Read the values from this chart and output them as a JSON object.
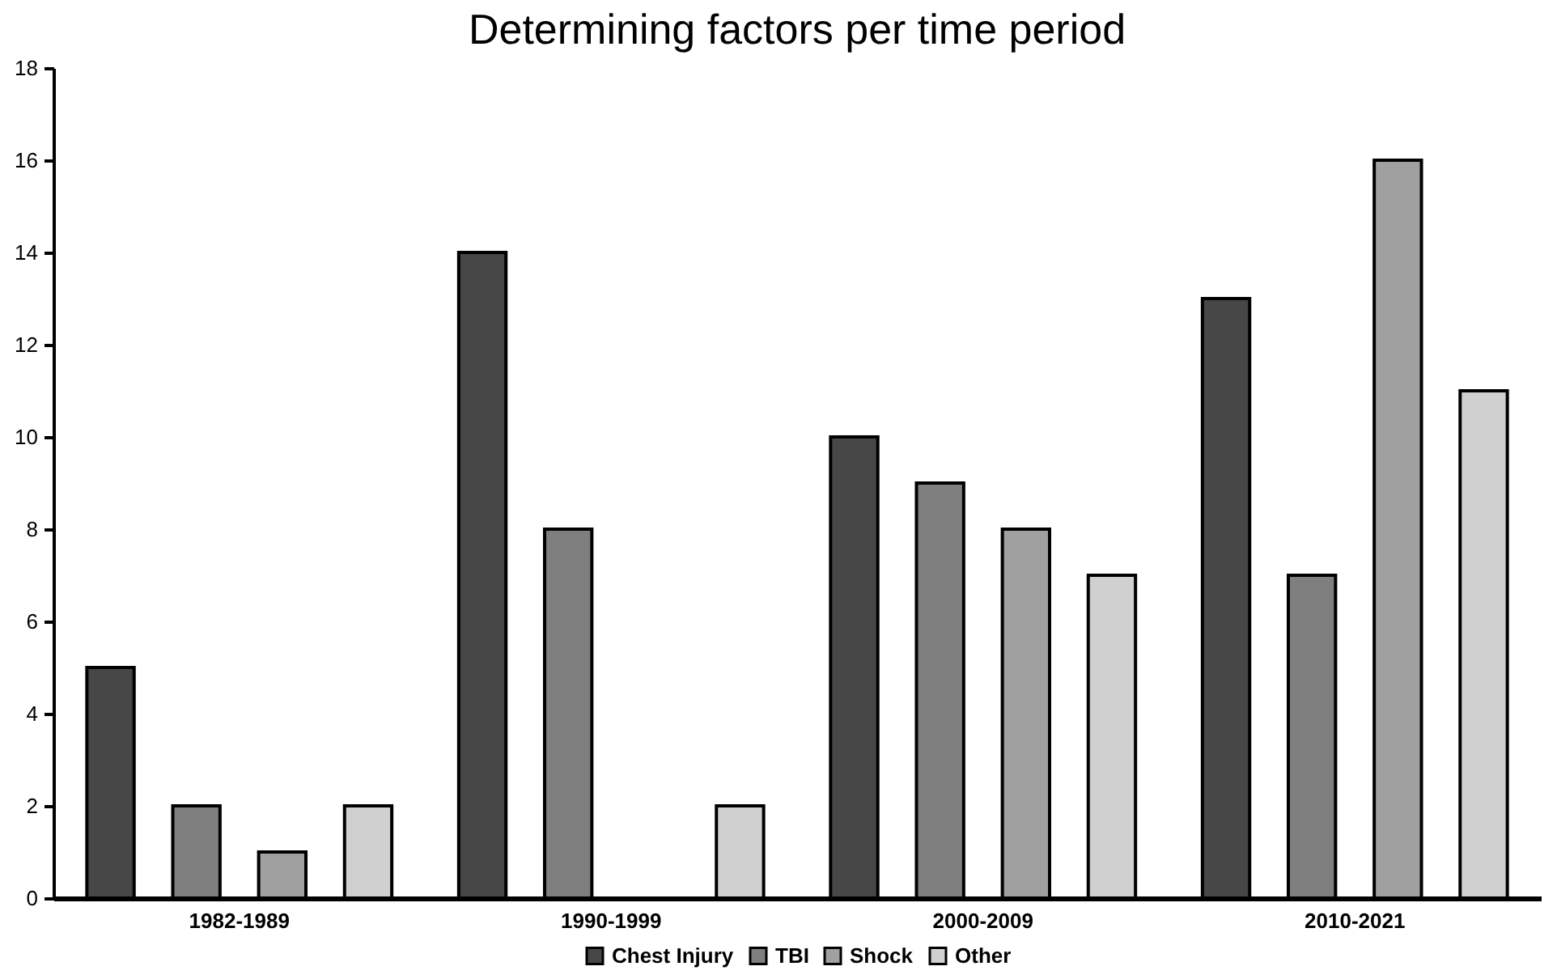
{
  "chart_data": {
    "type": "bar",
    "title": "Determining factors per time period",
    "categories": [
      "1982-1989",
      "1990-1999",
      "2000-2009",
      "2010-2021"
    ],
    "series": [
      {
        "name": "Chest Injury",
        "color": "#474747",
        "values": [
          5,
          14,
          10,
          13
        ]
      },
      {
        "name": "TBI",
        "color": "#7f7f7f",
        "values": [
          2,
          8,
          9,
          7
        ]
      },
      {
        "name": "Shock",
        "color": "#a0a0a0",
        "values": [
          1,
          null,
          8,
          16
        ]
      },
      {
        "name": "Other",
        "color": "#d0d0d0",
        "values": [
          2,
          2,
          7,
          11
        ]
      }
    ],
    "ylim": [
      0,
      18
    ],
    "yticks": [
      0,
      2,
      4,
      6,
      8,
      10,
      12,
      14,
      16,
      18
    ],
    "grid": false,
    "legend": "bottom"
  }
}
